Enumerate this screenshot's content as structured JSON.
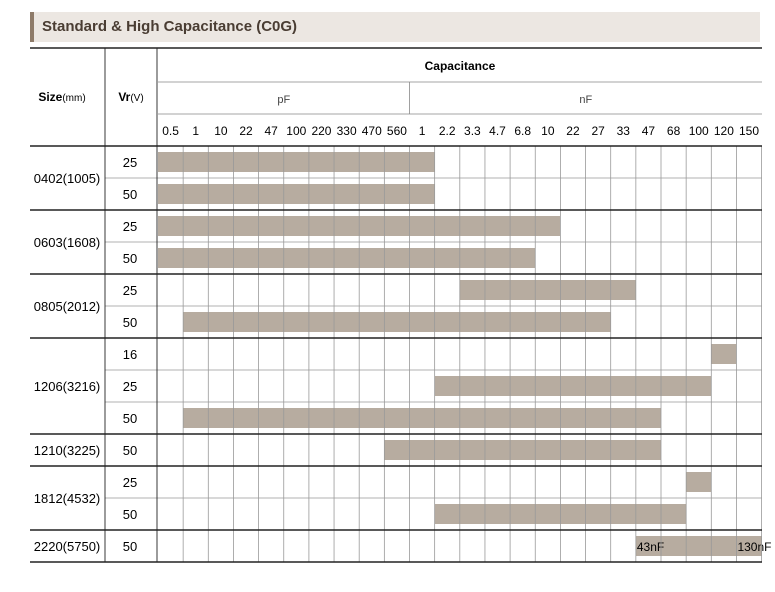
{
  "title": "Standard & High Capacitance (C0G)",
  "header": {
    "size_label": "Size",
    "size_unit": "(mm)",
    "vr_label": "Vr",
    "vr_unit": "(V)",
    "capacitance": "Capacitance",
    "pf_unit": "pF",
    "nf_unit": "nF"
  },
  "columns": [
    "0.5",
    "1",
    "10",
    "22",
    "47",
    "100",
    "220",
    "330",
    "470",
    "560",
    "1",
    "2.2",
    "3.3",
    "4.7",
    "6.8",
    "10",
    "22",
    "27",
    "33",
    "47",
    "68",
    "100",
    "120",
    "150"
  ],
  "groups": [
    {
      "size": "0402(1005)",
      "rows": [
        {
          "vr": "25",
          "range": [
            0,
            10
          ]
        },
        {
          "vr": "50",
          "range": [
            0,
            10
          ]
        }
      ]
    },
    {
      "size": "0603(1608)",
      "rows": [
        {
          "vr": "25",
          "range": [
            0,
            15
          ]
        },
        {
          "vr": "50",
          "range": [
            0,
            14
          ]
        }
      ]
    },
    {
      "size": "0805(2012)",
      "rows": [
        {
          "vr": "25",
          "range": [
            12,
            18
          ]
        },
        {
          "vr": "50",
          "range": [
            1,
            17
          ]
        }
      ]
    },
    {
      "size": "1206(3216)",
      "rows": [
        {
          "vr": "16",
          "range": [
            22,
            22
          ]
        },
        {
          "vr": "25",
          "range": [
            11,
            21
          ]
        },
        {
          "vr": "50",
          "range": [
            1,
            19
          ]
        }
      ]
    },
    {
      "size": "1210(3225)",
      "rows": [
        {
          "vr": "50",
          "range": [
            9,
            19
          ]
        }
      ]
    },
    {
      "size": "1812(4532)",
      "rows": [
        {
          "vr": "25",
          "range": [
            21,
            21
          ]
        },
        {
          "vr": "50",
          "range": [
            11,
            20
          ]
        }
      ]
    },
    {
      "size": "2220(5750)",
      "rows": [
        {
          "vr": "50",
          "range": [
            19,
            23
          ],
          "start_label": "43nF",
          "end_label": "130nF"
        }
      ]
    }
  ],
  "colors": {
    "bar": "#b7aca0",
    "title_bg": "#ece7e2",
    "title_accent": "#8e7b69",
    "line": "#222222",
    "grid": "#999999"
  }
}
